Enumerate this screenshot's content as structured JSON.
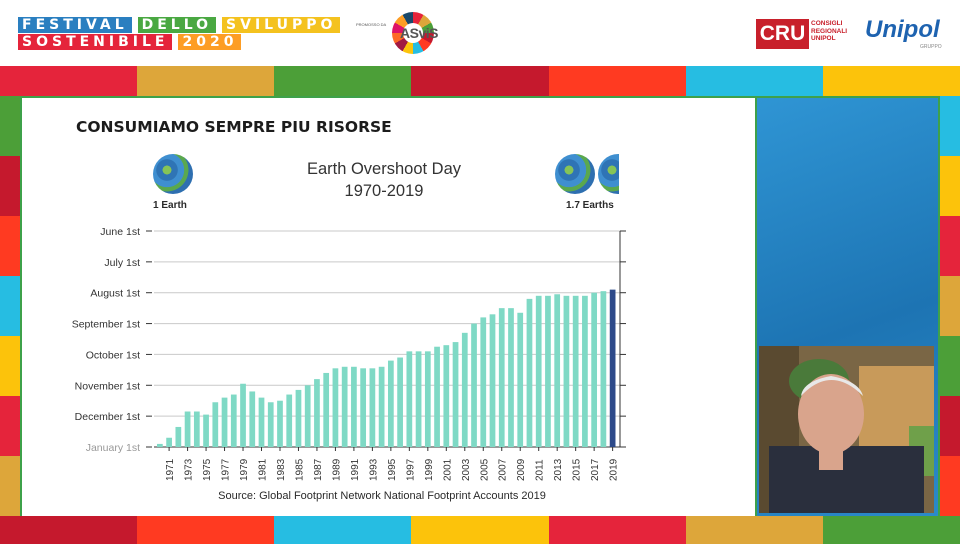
{
  "header": {
    "festival_line1": [
      "FESTIVAL",
      "DELLO",
      "SVILUPPO"
    ],
    "festival_line2": [
      "SOSTENIBILE",
      "2020"
    ],
    "promoter": "PROMOSSO DA",
    "asvis": "ASviS",
    "cru": "CRU",
    "cru_sub": "CONSIGLI REGIONALI UNIPOL",
    "unipol": "Unipol",
    "unipol_sub": "GRUPPO"
  },
  "slide": {
    "title": "CONSUMIAMO SEMPRE PIU RISORSE",
    "left_label": "1 Earth",
    "right_label": "1.7 Earths",
    "source": "Source: Global Footprint Network National Footprint Accounts 2019"
  },
  "colors": {
    "bar": "#7fd9c5",
    "last_bar": "#2d4a8a",
    "grid": "#c9c9c9",
    "sdg_stripes": [
      "#e5243b",
      "#dda63a",
      "#4c9f38",
      "#c5192d",
      "#ff3a21",
      "#26bde2",
      "#fcc30b"
    ]
  },
  "chart_data": {
    "type": "bar",
    "title": "Earth Overshoot Day",
    "subtitle": "1970-2019",
    "y_ticks": [
      "June 1st",
      "July 1st",
      "August 1st",
      "September 1st",
      "October 1st",
      "November 1st",
      "December 1st",
      "January 1st"
    ],
    "x_tick_labels": [
      "1971",
      "1973",
      "1975",
      "1977",
      "1979",
      "1981",
      "1983",
      "1985",
      "1987",
      "1989",
      "1991",
      "1993",
      "1995",
      "1997",
      "1999",
      "2001",
      "2003",
      "2005",
      "2007",
      "2009",
      "2011",
      "2013",
      "2015",
      "2017",
      "2019"
    ],
    "ylabel": "",
    "xlabel": "",
    "ylim": [
      "January 1st",
      "June 1st"
    ],
    "grid": true,
    "years": [
      1970,
      1971,
      1972,
      1973,
      1974,
      1975,
      1976,
      1977,
      1978,
      1979,
      1980,
      1981,
      1982,
      1983,
      1984,
      1985,
      1986,
      1987,
      1988,
      1989,
      1990,
      1991,
      1992,
      1993,
      1994,
      1995,
      1996,
      1997,
      1998,
      1999,
      2000,
      2001,
      2002,
      2003,
      2004,
      2005,
      2006,
      2007,
      2008,
      2009,
      2010,
      2011,
      2012,
      2013,
      2014,
      2015,
      2016,
      2017,
      2018,
      2019
    ],
    "values_months_before_year_end": [
      0.1,
      0.3,
      0.65,
      1.15,
      1.15,
      1.05,
      1.45,
      1.6,
      1.7,
      2.05,
      1.8,
      1.6,
      1.45,
      1.5,
      1.7,
      1.85,
      2.0,
      2.2,
      2.4,
      2.55,
      2.6,
      2.6,
      2.55,
      2.55,
      2.6,
      2.8,
      2.9,
      3.1,
      3.1,
      3.1,
      3.25,
      3.3,
      3.4,
      3.7,
      4.0,
      4.2,
      4.3,
      4.5,
      4.5,
      4.35,
      4.8,
      4.9,
      4.9,
      4.95,
      4.9,
      4.9,
      4.9,
      5.0,
      5.05,
      5.1
    ]
  }
}
